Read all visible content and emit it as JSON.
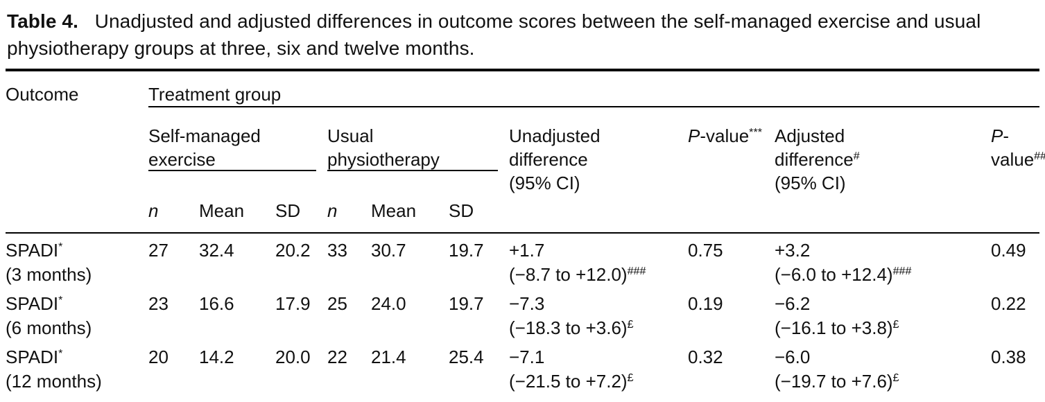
{
  "caption": {
    "label": "Table 4.",
    "line1": "Unadjusted and adjusted differences in outcome scores between the self-managed exercise and usual",
    "line2": "physiotherapy groups at three, six and twelve months."
  },
  "table": {
    "col_outcome": "Outcome",
    "col_treatment_group": "Treatment group",
    "group_self_managed": {
      "l1": "Self-managed",
      "l2": "exercise"
    },
    "group_usual": {
      "l1": "Usual",
      "l2": "physiotherapy"
    },
    "sub_headers": {
      "n": "n",
      "mean": "Mean",
      "sd": "SD"
    },
    "unadjusted_header": {
      "l1": "Unadjusted",
      "l2": "difference",
      "l3": "(95% CI)"
    },
    "pvalue1_header": {
      "p": "P",
      "rest": "-value",
      "sup": "***"
    },
    "adjusted_header": {
      "l1": "Adjusted",
      "l2": "difference",
      "l2_sup": "#",
      "l3": "(95% CI)"
    },
    "pvalue2_header": {
      "p": "P",
      "rest": "-",
      "l2": "value",
      "l2_sup": "##"
    },
    "rows": [
      {
        "outcome": "SPADI",
        "outcome_sup": "*",
        "outcome_sub": "(3 months)",
        "n1": "27",
        "mean1": "32.4",
        "sd1": "20.2",
        "n2": "33",
        "mean2": "30.7",
        "sd2": "19.7",
        "unadj": "+1.7",
        "unadj_ci": "(−8.7 to +12.0)",
        "unadj_sup": "###",
        "p1": "0.75",
        "adj": "+3.2",
        "adj_ci": "(−6.0 to +12.4)",
        "adj_sup": "###",
        "p2": "0.49"
      },
      {
        "outcome": "SPADI",
        "outcome_sup": "*",
        "outcome_sub": "(6 months)",
        "n1": "23",
        "mean1": "16.6",
        "sd1": "17.9",
        "n2": "25",
        "mean2": "24.0",
        "sd2": "19.7",
        "unadj": "−7.3",
        "unadj_ci": "(−18.3 to +3.6)",
        "unadj_sup": "£",
        "p1": "0.19",
        "adj": "−6.2",
        "adj_ci": "(−16.1 to +3.8)",
        "adj_sup": "£",
        "p2": "0.22"
      },
      {
        "outcome": "SPADI",
        "outcome_sup": "*",
        "outcome_sub": "(12 months)",
        "n1": "20",
        "mean1": "14.2",
        "sd1": "20.0",
        "n2": "22",
        "mean2": "21.4",
        "sd2": "25.4",
        "unadj": "−7.1",
        "unadj_ci": "(−21.5 to +7.2)",
        "unadj_sup": "£",
        "p1": "0.32",
        "adj": "−6.0",
        "adj_ci": "(−19.7 to +7.6)",
        "adj_sup": "£",
        "p2": "0.38"
      }
    ]
  },
  "colors": {
    "text": "#111111",
    "rule": "#000000",
    "background": "#ffffff"
  }
}
